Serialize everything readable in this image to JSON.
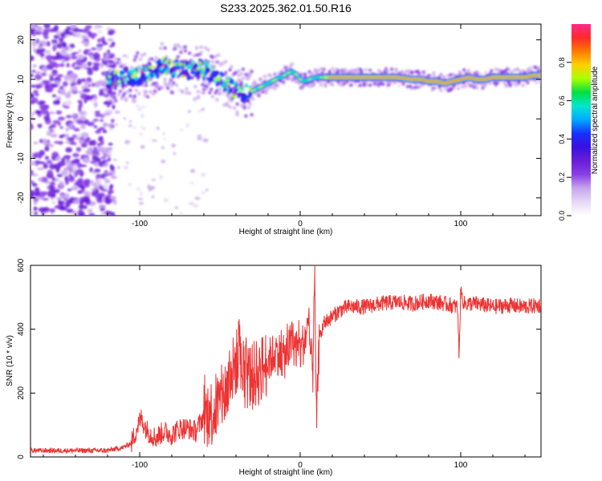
{
  "title": "S233.2025.362.01.50.R16",
  "chart_data": [
    {
      "type": "heatmap",
      "xlabel": "Height of straight line (km)",
      "ylabel": "Frequency (Hz)",
      "xlim": [
        -168,
        150
      ],
      "ylim": [
        -24.5,
        24
      ],
      "xticks": [
        -100,
        0,
        100
      ],
      "yticks": [
        -20,
        -10,
        0,
        10,
        20
      ],
      "grid": false,
      "colorbar": {
        "label": "Normalized spectral amplitude",
        "range": [
          0,
          1
        ],
        "ticks": [
          "0.0",
          "0.2",
          "0.4",
          "0.6",
          "0.8"
        ],
        "colors": [
          "#ffffff",
          "#e6d8f5",
          "#c8a6ee",
          "#8a3fe6",
          "#6a1ed8",
          "#3a10e0",
          "#1830ff",
          "#00a8ff",
          "#00e6d0",
          "#00e040",
          "#a8ff00",
          "#ffd200",
          "#ff7a00",
          "#ff2a2a",
          "#ff2a88"
        ]
      },
      "ridge": {
        "x": [
          -120,
          -110,
          -100,
          -95,
          -90,
          -85,
          -80,
          -75,
          -70,
          -65,
          -60,
          -55,
          -50,
          -45,
          -40,
          -35,
          -30,
          -25,
          -20,
          -15,
          -10,
          -6,
          -3,
          0,
          3,
          6,
          10,
          15,
          20,
          30,
          40,
          50,
          60,
          70,
          75,
          80,
          85,
          90,
          95,
          100,
          105,
          110,
          115,
          120,
          125,
          130,
          135,
          140,
          145,
          150
        ],
        "y": [
          9.5,
          10.5,
          11,
          11,
          12.5,
          13.5,
          12.5,
          13,
          12,
          13,
          12.5,
          11.5,
          10,
          8.5,
          7,
          6.5,
          7,
          8,
          9,
          10,
          11,
          12,
          11.5,
          10,
          9.5,
          10,
          10.5,
          10.5,
          10.5,
          10.5,
          10.5,
          10.5,
          10.5,
          10,
          10,
          9.5,
          9.5,
          9,
          9.5,
          10,
          10.5,
          10,
          10,
          10.5,
          10.5,
          10.5,
          10.5,
          10.5,
          11,
          11
        ]
      }
    },
    {
      "type": "line",
      "xlabel": "Height of straight line (km)",
      "ylabel": "SNR (10 * v/v)",
      "xlim": [
        -168,
        150
      ],
      "ylim": [
        0,
        600
      ],
      "xticks": [
        -100,
        0,
        100
      ],
      "yticks": [
        0,
        200,
        400,
        600
      ],
      "grid": false,
      "series": [
        {
          "color": "#ee3333",
          "x": [
            -168,
            -140,
            -120,
            -110,
            -105,
            -101,
            -99,
            -95,
            -90,
            -85,
            -80,
            -75,
            -70,
            -65,
            -60,
            -55,
            -50,
            -45,
            -40,
            -35,
            -30,
            -25,
            -20,
            -15,
            -10,
            -5,
            0,
            5,
            8,
            9,
            10,
            12,
            15,
            20,
            25,
            30,
            40,
            50,
            60,
            70,
            80,
            90,
            98,
            99,
            100,
            102,
            110,
            120,
            130,
            140,
            150
          ],
          "y": [
            20,
            20,
            20,
            30,
            45,
            100,
            120,
            80,
            60,
            80,
            70,
            90,
            90,
            80,
            130,
            140,
            170,
            220,
            300,
            260,
            250,
            270,
            300,
            330,
            310,
            360,
            330,
            400,
            260,
            590,
            100,
            370,
            420,
            440,
            460,
            470,
            470,
            480,
            485,
            480,
            490,
            480,
            470,
            320,
            520,
            480,
            480,
            470,
            475,
            470,
            475
          ]
        }
      ]
    }
  ]
}
